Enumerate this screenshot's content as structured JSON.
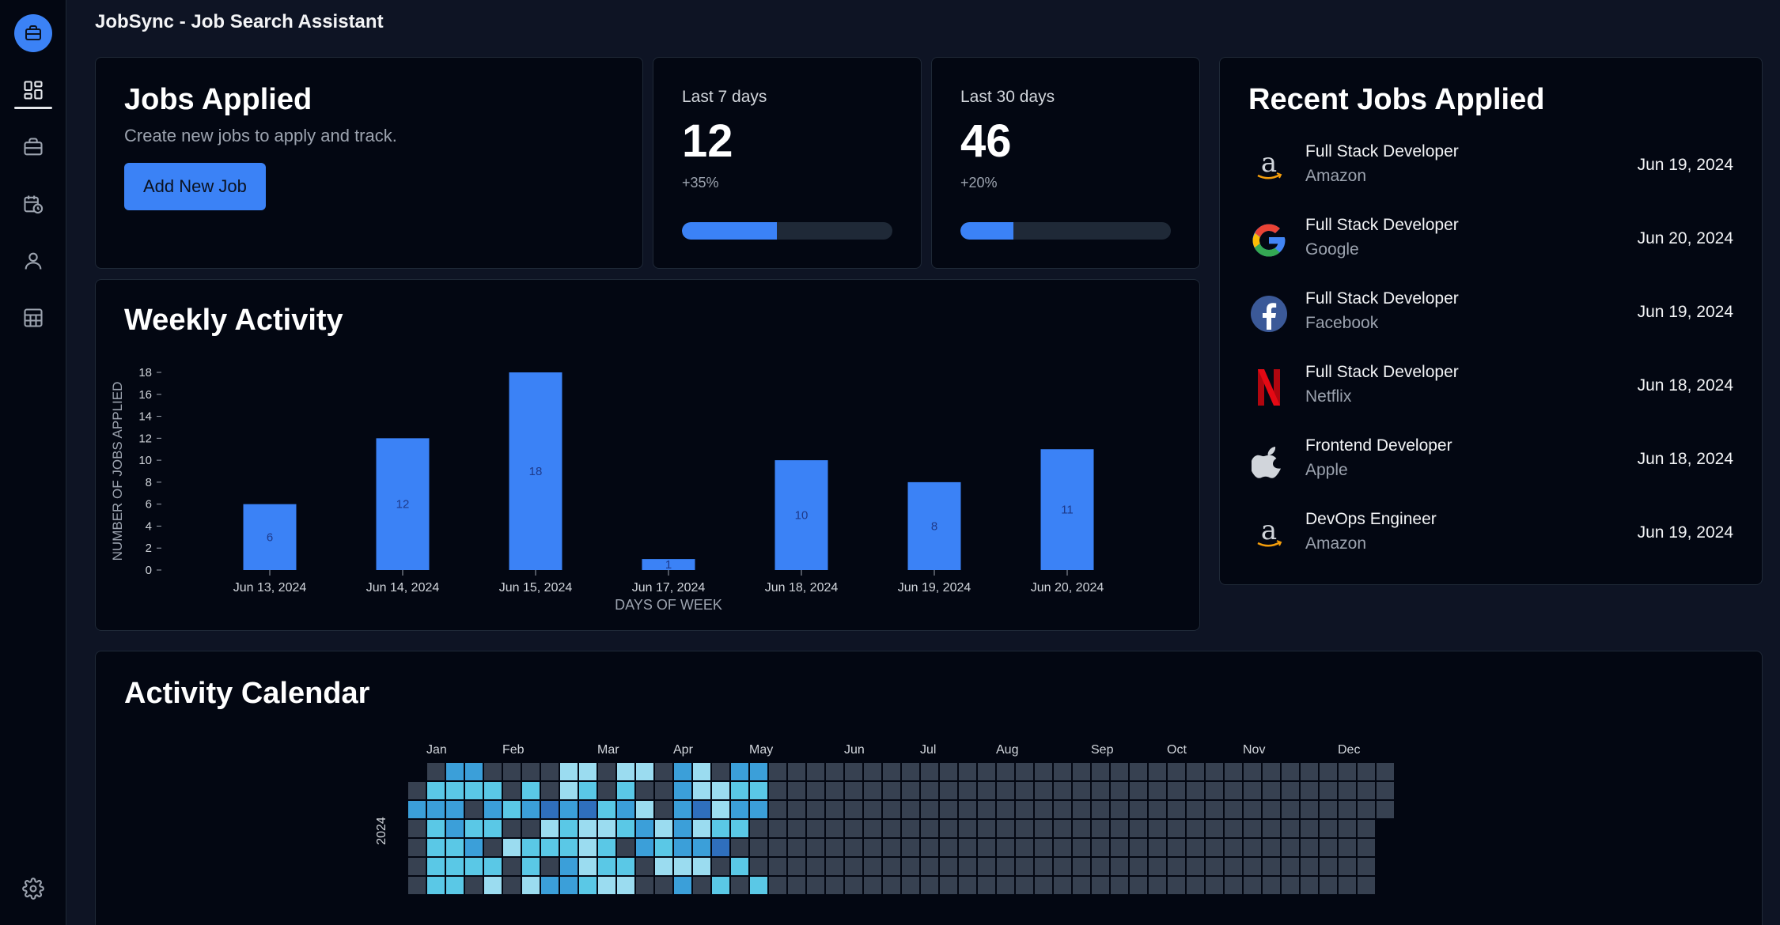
{
  "app": {
    "title": "JobSync - Job Search Assistant"
  },
  "sidebar": {
    "items": [
      {
        "icon": "briefcase-icon",
        "active": false
      },
      {
        "icon": "dashboard-icon",
        "active": true
      },
      {
        "icon": "briefcase-icon",
        "active": false
      },
      {
        "icon": "calendar-clock-icon",
        "active": false
      },
      {
        "icon": "user-icon",
        "active": false
      },
      {
        "icon": "table-icon",
        "active": false
      }
    ],
    "settings_icon": "gear-icon"
  },
  "jobs_applied": {
    "title": "Jobs Applied",
    "subtitle": "Create new jobs to apply and track.",
    "button": "Add New Job"
  },
  "stats": [
    {
      "label": "Last 7 days",
      "value": "12",
      "change": "+35%",
      "progress": 0.45
    },
    {
      "label": "Last 30 days",
      "value": "46",
      "change": "+20%",
      "progress": 0.25
    }
  ],
  "recent": {
    "title": "Recent Jobs Applied",
    "jobs": [
      {
        "title": "Full Stack Developer",
        "company": "Amazon",
        "date": "Jun 19, 2024",
        "logo": "amazon-logo-icon"
      },
      {
        "title": "Full Stack Developer",
        "company": "Google",
        "date": "Jun 20, 2024",
        "logo": "google-logo-icon"
      },
      {
        "title": "Full Stack Developer",
        "company": "Facebook",
        "date": "Jun 19, 2024",
        "logo": "facebook-logo-icon"
      },
      {
        "title": "Full Stack Developer",
        "company": "Netflix",
        "date": "Jun 18, 2024",
        "logo": "netflix-logo-icon"
      },
      {
        "title": "Frontend Developer",
        "company": "Apple",
        "date": "Jun 18, 2024",
        "logo": "apple-logo-icon"
      },
      {
        "title": "DevOps Engineer",
        "company": "Amazon",
        "date": "Jun 19, 2024",
        "logo": "amazon-logo-icon"
      }
    ]
  },
  "weekly": {
    "title": "Weekly Activity"
  },
  "chart_data": {
    "type": "bar",
    "categories": [
      "Jun 13, 2024",
      "Jun 14, 2024",
      "Jun 15, 2024",
      "Jun 17, 2024",
      "Jun 18, 2024",
      "Jun 19, 2024",
      "Jun 20, 2024"
    ],
    "values": [
      6,
      12,
      18,
      1,
      10,
      8,
      11
    ],
    "data_labels": [
      "6",
      "12",
      "18",
      "1",
      "10",
      "8",
      "11"
    ],
    "xlabel": "DAYS OF WEEK",
    "ylabel": "NUMBER OF JOBS APPLIED",
    "ylim": [
      0,
      18
    ],
    "yticks": [
      "0",
      "2",
      "4",
      "6",
      "8",
      "10",
      "12",
      "14",
      "16",
      "18"
    ],
    "bar_color": "#3b82f6",
    "grid": false
  },
  "calendar": {
    "title": "Activity Calendar",
    "year": "2024",
    "months": [
      "Jan",
      "Feb",
      "Mar",
      "Apr",
      "May",
      "Jun",
      "Jul",
      "Aug",
      "Sep",
      "Oct",
      "Nov",
      "Dec"
    ],
    "month_start_weeks": [
      1,
      5,
      10,
      14,
      18,
      23,
      27,
      31,
      36,
      40,
      44,
      49
    ],
    "levels": [
      "0033000011011031033000000000000000000000000000000000",
      "0222202012020031122000000000000000000000000000000000",
      "3330323434231034133000000000000000000000000000000000",
      "0232200121123131220000000000000000000000000000000000",
      "0223012221203233400000000000000000000000000000000000",
      "0222202031220111020000000000000000000000000000000000",
      "0220101332110030202000000000000000000000000000000000"
    ],
    "colors": [
      "#374151",
      "#9bdcf0",
      "#5ac8e6",
      "#3b9fd9",
      "#2f6fbd"
    ]
  }
}
